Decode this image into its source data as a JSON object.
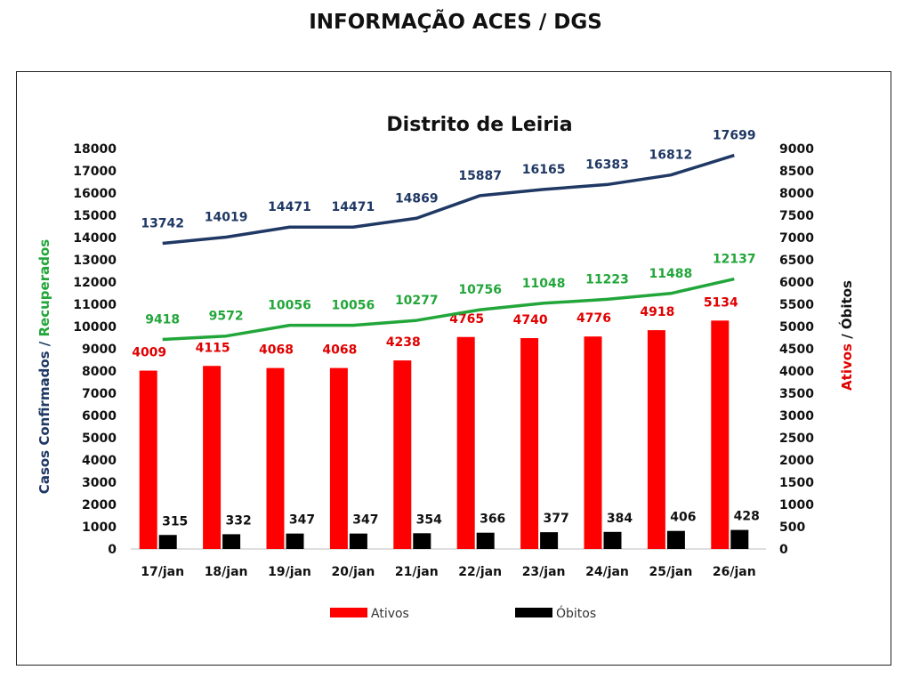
{
  "page_title": "INFORMAÇÃO ACES / DGS",
  "chart_data": {
    "type": "bar",
    "title": "Distrito de Leiria",
    "categories": [
      "17/jan",
      "18/jan",
      "19/jan",
      "20/jan",
      "21/jan",
      "22/jan",
      "23/jan",
      "24/jan",
      "25/jan",
      "26/jan"
    ],
    "left_axis": {
      "label_parts": [
        {
          "text": "Casos Confirmados",
          "color": "#1f3864"
        },
        {
          "text": " / ",
          "color": "#1f3864"
        },
        {
          "text": "Recuperados",
          "color": "#22a63a"
        }
      ],
      "range": [
        0,
        18000
      ],
      "ticks": [
        0,
        1000,
        2000,
        3000,
        4000,
        5000,
        6000,
        7000,
        8000,
        9000,
        10000,
        11000,
        12000,
        13000,
        14000,
        15000,
        16000,
        17000,
        18000
      ]
    },
    "right_axis": {
      "label_parts": [
        {
          "text": "Ativos",
          "color": "#e00000"
        },
        {
          "text": " / Óbitos",
          "color": "#111111"
        }
      ],
      "range": [
        0,
        9000
      ],
      "ticks": [
        0,
        500,
        1000,
        1500,
        2000,
        2500,
        3000,
        3500,
        4000,
        4500,
        5000,
        5500,
        6000,
        6500,
        7000,
        7500,
        8000,
        8500,
        9000
      ]
    },
    "series": [
      {
        "type": "line",
        "axis": "left",
        "color": "#1f3864",
        "values": [
          13742,
          14019,
          14471,
          14471,
          14869,
          15887,
          16165,
          16383,
          16812,
          17699
        ]
      },
      {
        "type": "line",
        "axis": "left",
        "color": "#22a63a",
        "values": [
          9418,
          9572,
          10056,
          10056,
          10277,
          10756,
          11048,
          11223,
          11488,
          12137
        ]
      },
      {
        "type": "bar",
        "axis": "right",
        "name": "Ativos",
        "color": "#ff0000",
        "label_color": "#e00000",
        "values": [
          4009,
          4115,
          4068,
          4068,
          4238,
          4765,
          4740,
          4776,
          4918,
          5134
        ]
      },
      {
        "type": "bar",
        "axis": "right",
        "name": "Óbitos",
        "color": "#000000",
        "label_color": "#111111",
        "values": [
          315,
          332,
          347,
          347,
          354,
          366,
          377,
          384,
          406,
          428
        ]
      }
    ],
    "legend": {
      "position": "bottom",
      "items": [
        "Ativos",
        "Óbitos"
      ]
    },
    "grid": false
  }
}
